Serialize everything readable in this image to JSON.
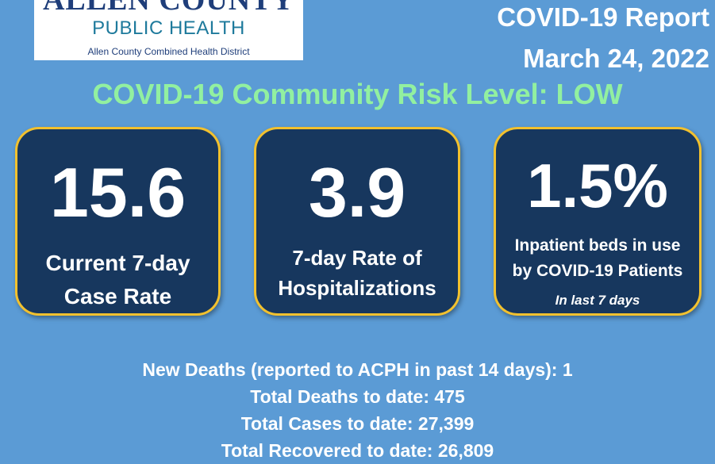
{
  "logo": {
    "line1": "ALLEN COUNTY",
    "line2": "PUBLIC HEALTH",
    "line3": "Allen County Combined Health District"
  },
  "report": {
    "title": "COVID-19 Report",
    "date": "March 24, 2022"
  },
  "risk_level": "COVID-19 Community Risk Level: LOW",
  "cards": [
    {
      "value": "15.6",
      "label_line1": "Current 7-day",
      "label_line2": "Case Rate"
    },
    {
      "value": "3.9",
      "label_line1": "7-day Rate of",
      "label_line2": "Hospitalizations"
    },
    {
      "value": "1.5%",
      "label_line1": "Inpatient beds in use",
      "label_line2": "by COVID-19 Patients",
      "note": "In last  7 days"
    }
  ],
  "stats": [
    "New Deaths (reported to ACPH in past 14 days): 1",
    "Total Deaths to date: 475",
    "Total Cases to date: 27,399",
    "Total Recovered to date: 26,809"
  ],
  "colors": {
    "background": "#5b9bd5",
    "card": "#17375e",
    "card_border": "#f2c12e",
    "risk_text": "#92f0a0"
  }
}
